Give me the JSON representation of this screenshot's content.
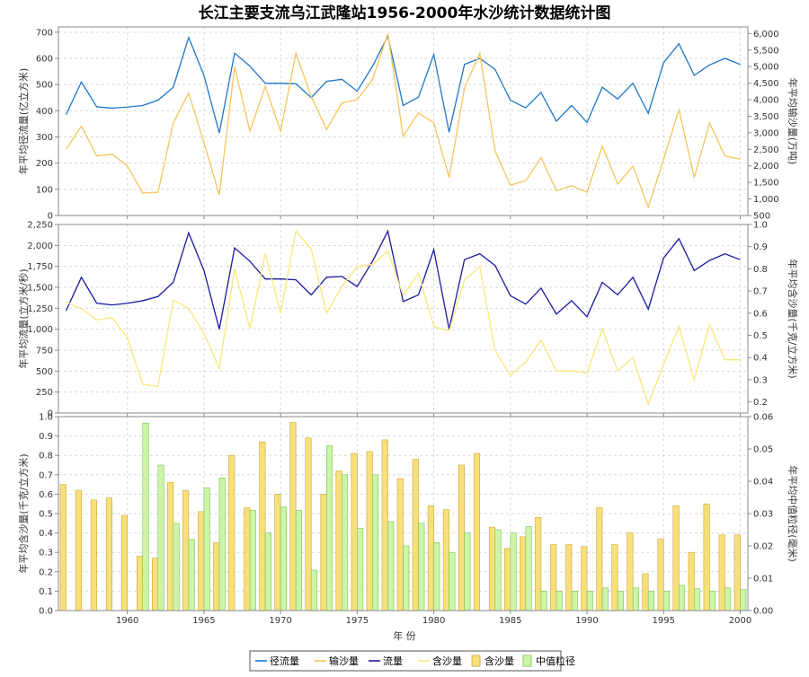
{
  "chart_data": {
    "type": "line",
    "title": "长江主要支流乌江武隆站1956-2000年水沙统计数据统计图",
    "xlabel": "年 份",
    "x_ticks": [
      1960,
      1965,
      1970,
      1975,
      1980,
      1985,
      1990,
      1995,
      2000
    ],
    "x_range": [
      1955.5,
      2000.5
    ],
    "years": [
      1956,
      1957,
      1958,
      1959,
      1960,
      1961,
      1962,
      1963,
      1964,
      1965,
      1966,
      1967,
      1968,
      1969,
      1970,
      1971,
      1972,
      1973,
      1974,
      1975,
      1976,
      1977,
      1978,
      1979,
      1980,
      1981,
      1982,
      1983,
      1984,
      1985,
      1986,
      1987,
      1988,
      1989,
      1990,
      1991,
      1992,
      1993,
      1994,
      1995,
      1996,
      1997,
      1998,
      1999,
      2000
    ],
    "panels": [
      {
        "left_label": "年平均径流量(亿立方米)",
        "right_label": "年平均输沙量(万吨)",
        "left_range": [
          0,
          720
        ],
        "left_ticks": [
          0,
          100,
          200,
          300,
          400,
          500,
          600,
          700
        ],
        "right_range": [
          500,
          6200
        ],
        "right_ticks": [
          500,
          1000,
          1500,
          2000,
          2500,
          3000,
          3500,
          4000,
          4500,
          5000,
          5500,
          6000
        ],
        "tick_format": "comma",
        "series": [
          {
            "name": "径流量",
            "axis": "left",
            "color": "#1f77c8",
            "values": [
              385,
              510,
              415,
              410,
              414,
              420,
              440,
              490,
              680,
              535,
              315,
              620,
              570,
              505,
              505,
              503,
              450,
              512,
              520,
              475,
              570,
              685,
              420,
              452,
              615,
              318,
              577,
              600,
              558,
              440,
              411,
              470,
              360,
              420,
              355,
              490,
              445,
              505,
              390,
              584,
              656,
              535,
              575,
              600,
              577
            ]
          },
          {
            "name": "输沙量",
            "axis": "left",
            "color": "#f5c55a",
            "values": [
              2500,
              3200,
              2300,
              2350,
              2000,
              1180,
              1200,
              3300,
              4200,
              2700,
              1120,
              5000,
              3050,
              4400,
              3050,
              5400,
              4100,
              3100,
              3900,
              4000,
              4600,
              6000,
              2900,
              3600,
              3300,
              1650,
              4350,
              5400,
              2450,
              1420,
              1550,
              2250,
              1250,
              1400,
              1200,
              2600,
              1450,
              2000,
              750,
              2200,
              3700,
              1650,
              3300,
              2300,
              2200
            ],
            "values_axis": "right"
          }
        ]
      },
      {
        "left_label": "年平均流量(立方米/秒)",
        "right_label": "年平均含沙量(千克/立方米)",
        "left_range": [
          0,
          2250
        ],
        "left_ticks": [
          0,
          250,
          500,
          750,
          1000,
          1250,
          1500,
          1750,
          2000,
          2250
        ],
        "right_range": [
          0.15,
          1.0
        ],
        "right_ticks": [
          0.2,
          0.3,
          0.4,
          0.5,
          0.6,
          0.7,
          0.8,
          0.9,
          1.0
        ],
        "series": [
          {
            "name": "流量",
            "axis": "left",
            "color": "#1a1aa0",
            "values": [
              1220,
              1620,
              1310,
              1290,
              1310,
              1340,
              1390,
              1560,
              2150,
              1700,
              1000,
              1970,
              1810,
              1600,
              1600,
              1590,
              1410,
              1620,
              1630,
              1510,
              1810,
              2170,
              1330,
              1410,
              1950,
              1000,
              1830,
              1900,
              1760,
              1400,
              1300,
              1490,
              1180,
              1340,
              1150,
              1560,
              1410,
              1620,
              1240,
              1850,
              2080,
              1700,
              1820,
              1900,
              1830
            ]
          },
          {
            "name": "含沙量",
            "axis": "right",
            "color": "#fbe67a",
            "values": [
              0.65,
              0.62,
              0.57,
              0.58,
              0.49,
              0.28,
              0.27,
              0.66,
              0.62,
              0.51,
              0.35,
              0.8,
              0.53,
              0.87,
              0.6,
              0.97,
              0.89,
              0.6,
              0.72,
              0.81,
              0.82,
              0.88,
              0.68,
              0.78,
              0.54,
              0.52,
              0.75,
              0.81,
              0.43,
              0.32,
              0.38,
              0.48,
              0.34,
              0.34,
              0.33,
              0.53,
              0.34,
              0.4,
              0.19,
              0.37,
              0.54,
              0.3,
              0.55,
              0.39,
              0.39
            ]
          }
        ]
      },
      {
        "left_label": "年平均含沙量(千克/立方米)",
        "right_label": "年平均中值粒径(毫米)",
        "left_range": [
          0,
          1.0
        ],
        "left_ticks": [
          0,
          0.1,
          0.2,
          0.3,
          0.4,
          0.5,
          0.6,
          0.7,
          0.8,
          0.9,
          1.0
        ],
        "right_range": [
          0,
          0.06
        ],
        "right_ticks": [
          0,
          0.01,
          0.02,
          0.03,
          0.04,
          0.05,
          0.06
        ],
        "bars": [
          {
            "name": "含沙量",
            "axis": "left",
            "color": "#f7e07a",
            "stroke": "#c9a63a",
            "values": [
              0.65,
              0.62,
              0.57,
              0.58,
              0.49,
              0.28,
              0.27,
              0.66,
              0.62,
              0.51,
              0.35,
              0.8,
              0.53,
              0.87,
              0.6,
              0.97,
              0.89,
              0.6,
              0.72,
              0.81,
              0.82,
              0.88,
              0.68,
              0.78,
              0.54,
              0.52,
              0.75,
              0.81,
              0.43,
              0.32,
              0.38,
              0.48,
              0.34,
              0.34,
              0.33,
              0.53,
              0.34,
              0.4,
              0.19,
              0.37,
              0.54,
              0.3,
              0.55,
              0.39,
              0.39
            ]
          },
          {
            "name": "中值粒径",
            "axis": "right",
            "color": "#ccf5a8",
            "stroke": "#7fbf57",
            "values": [
              null,
              null,
              null,
              null,
              null,
              0.058,
              0.045,
              0.027,
              0.022,
              0.038,
              0.041,
              null,
              0.031,
              0.024,
              0.032,
              0.031,
              0.0125,
              0.051,
              0.042,
              0.0255,
              0.042,
              0.0275,
              0.02,
              0.027,
              0.021,
              0.018,
              0.024,
              null,
              0.025,
              0.024,
              0.026,
              0.006,
              0.006,
              0.006,
              0.006,
              0.007,
              0.006,
              0.007,
              0.006,
              0.006,
              0.0078,
              0.0068,
              0.006,
              0.007,
              0.0065
            ]
          }
        ]
      }
    ],
    "legend": {
      "placement": "bottom",
      "entries": [
        {
          "label": "径流量",
          "kind": "line",
          "color": "#1f77c8"
        },
        {
          "label": "输沙量",
          "kind": "line",
          "color": "#f5c55a"
        },
        {
          "label": "流量",
          "kind": "line",
          "color": "#1a1aa0"
        },
        {
          "label": "含沙量",
          "kind": "line",
          "color": "#fbe67a"
        },
        {
          "label": "含沙量",
          "kind": "bar",
          "color": "#f7e07a",
          "stroke": "#c9a63a"
        },
        {
          "label": "中值粒径",
          "kind": "bar",
          "color": "#ccf5a8",
          "stroke": "#7fbf57"
        }
      ]
    },
    "grid": true
  }
}
